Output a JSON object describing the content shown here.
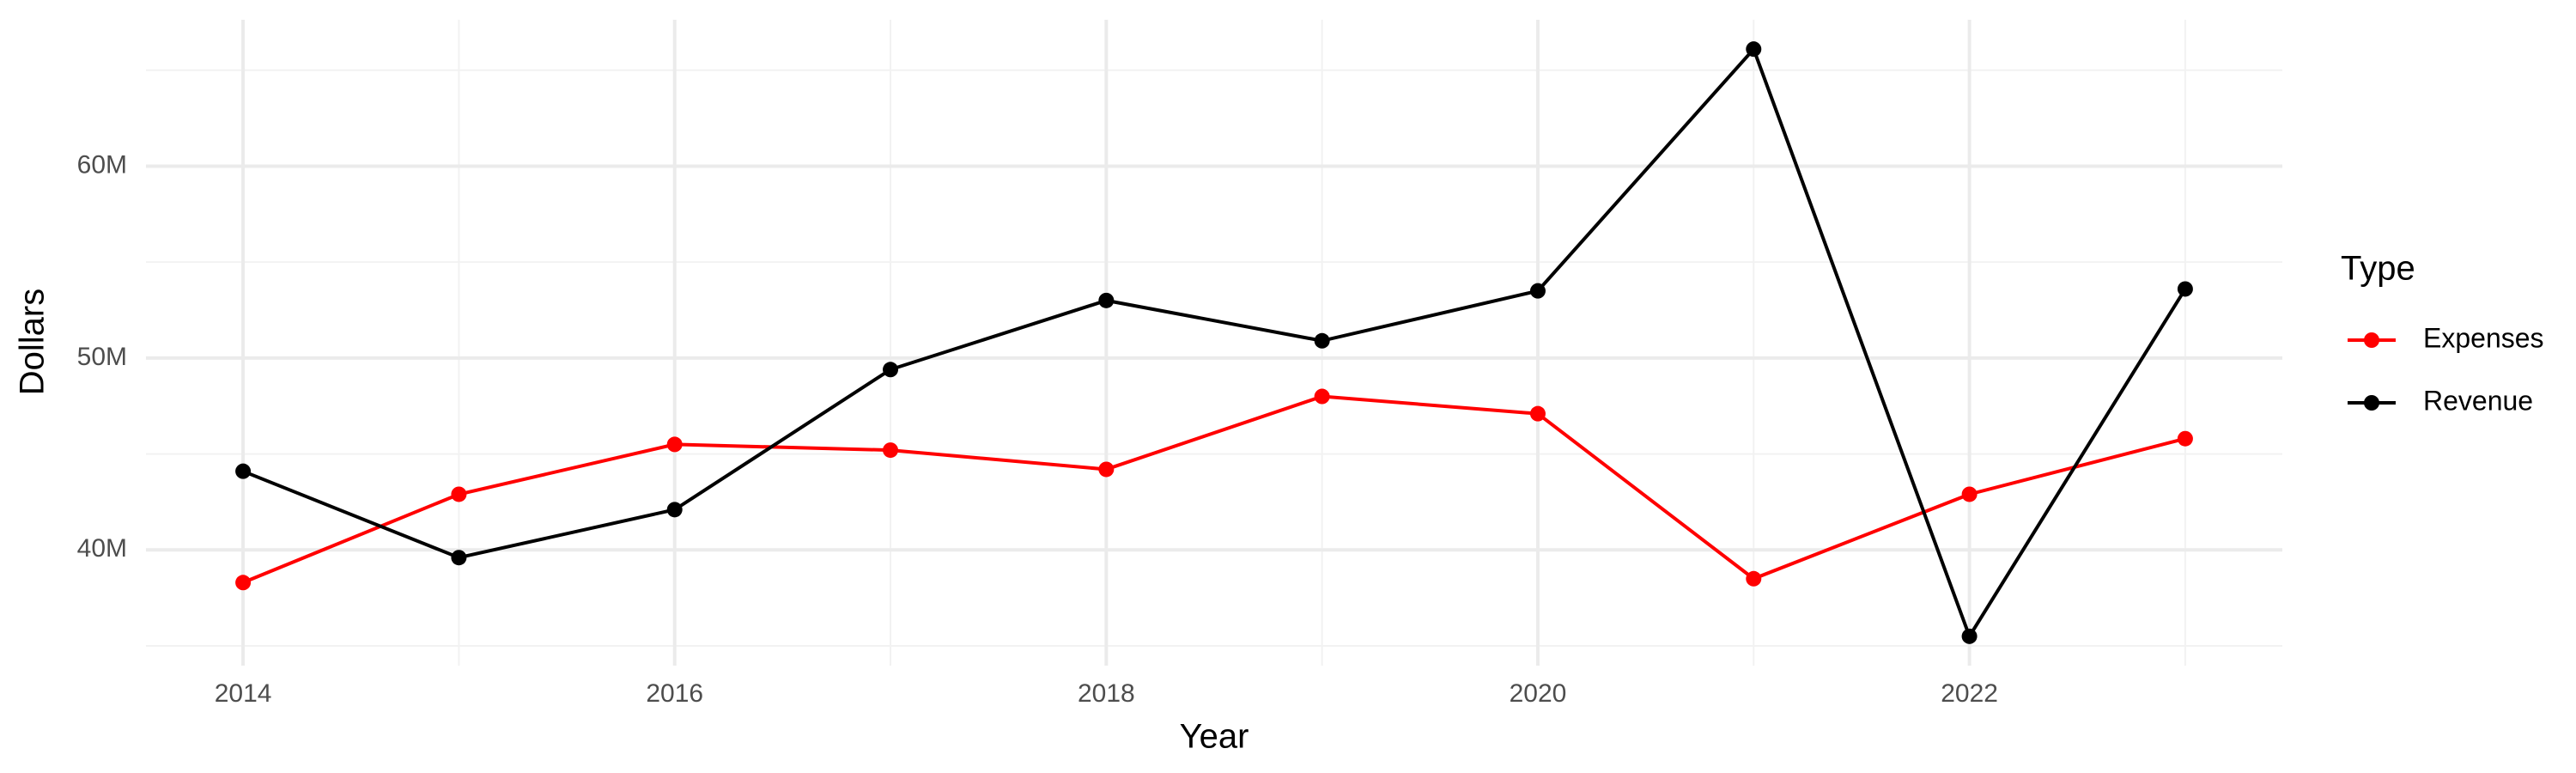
{
  "chart_data": {
    "type": "line",
    "x_label": "Year",
    "y_label": "Dollars",
    "legend_title": "Type",
    "x": [
      2014,
      2015,
      2016,
      2017,
      2018,
      2019,
      2020,
      2021,
      2022,
      2023
    ],
    "series": [
      {
        "name": "Expenses",
        "color": "#ff0000",
        "values": [
          38300000,
          42900000,
          45500000,
          45200000,
          44200000,
          48000000,
          47100000,
          38500000,
          42900000,
          45800000
        ]
      },
      {
        "name": "Revenue",
        "color": "#000000",
        "values": [
          44100000,
          39600000,
          42100000,
          49400000,
          53000000,
          50900000,
          53500000,
          66100000,
          35500000,
          53600000
        ]
      }
    ],
    "xlim": [
      2013.55,
      2023.45
    ],
    "xticks": [
      2014,
      2016,
      2018,
      2020,
      2022
    ],
    "ylim": [
      33970000,
      67630000
    ],
    "yticks": [
      {
        "value": 40000000,
        "label": "40M"
      },
      {
        "value": 50000000,
        "label": "50M"
      },
      {
        "value": 60000000,
        "label": "60M"
      }
    ],
    "grid": true,
    "legend": "right"
  }
}
